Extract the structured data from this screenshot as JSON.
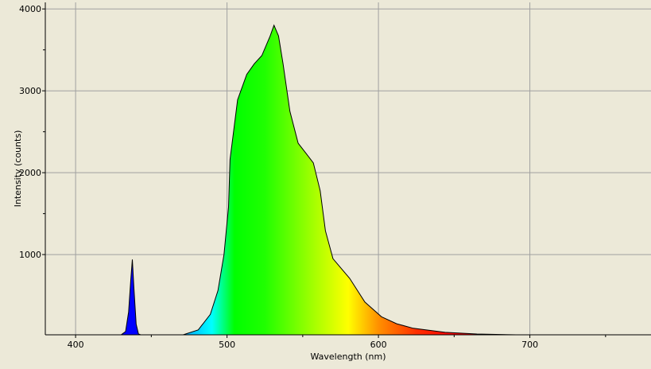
{
  "chart_data": {
    "type": "area",
    "title": "",
    "xlabel": "Wavelength (nm)",
    "ylabel": "Intensity (counts)",
    "xlim": [
      380,
      780
    ],
    "ylim": [
      20,
      4080
    ],
    "x_ticks": [
      400,
      500,
      600,
      700
    ],
    "y_ticks": [
      1000,
      2000,
      3000,
      4000
    ],
    "grid": true,
    "fill": "spectral wavelength colors",
    "series": [
      {
        "x": [
          430,
          433,
          435,
          436.5,
          437.5,
          438.5,
          440,
          441.5,
          443
        ],
        "y": [
          0,
          60,
          300,
          700,
          940,
          600,
          150,
          30,
          0
        ]
      },
      {
        "x": [
          465,
          471,
          481,
          489,
          494,
          498,
          501,
          502,
          507,
          513,
          518,
          523,
          528.5,
          531,
          534,
          537,
          541.5,
          547,
          552,
          557,
          561.5,
          565,
          570,
          581,
          591,
          602,
          612,
          623,
          644,
          665,
          691,
          720
        ],
        "y": [
          0,
          10,
          80,
          270,
          560,
          1000,
          1580,
          2160,
          2890,
          3200,
          3330,
          3430,
          3670,
          3800,
          3670,
          3330,
          2750,
          2360,
          2240,
          2120,
          1780,
          1290,
          950,
          710,
          420,
          240,
          155,
          100,
          50,
          30,
          20,
          20
        ]
      }
    ]
  }
}
